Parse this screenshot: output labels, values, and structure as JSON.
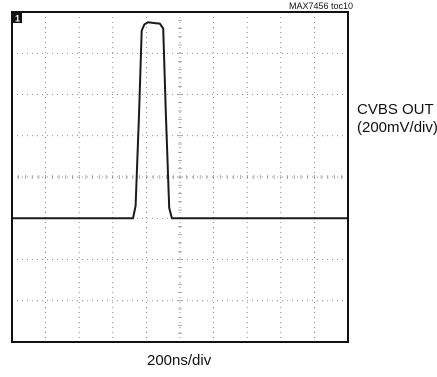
{
  "figure_id": "MAX7456 toc10",
  "chart_data": {
    "type": "line",
    "title": "",
    "xlabel": "200ns/div",
    "ylabel": "",
    "grid": true,
    "x_divisions": 10,
    "y_divisions": 8,
    "xlim": [
      0,
      10
    ],
    "ylim": [
      0,
      8
    ],
    "channel_marker": "1",
    "channel_label_line1": "CVBS OUT",
    "channel_label_line2": "(200mV/div)",
    "series": [
      {
        "x": [
          0,
          3.6,
          3.68,
          3.78,
          3.86,
          3.94,
          4.05,
          4.25,
          4.4,
          4.5,
          4.58,
          4.68,
          4.76,
          10
        ],
        "y": [
          3.0,
          3.0,
          3.3,
          5.5,
          7.55,
          7.7,
          7.75,
          7.73,
          7.72,
          7.6,
          5.5,
          3.25,
          3.0,
          3.0
        ]
      }
    ]
  }
}
